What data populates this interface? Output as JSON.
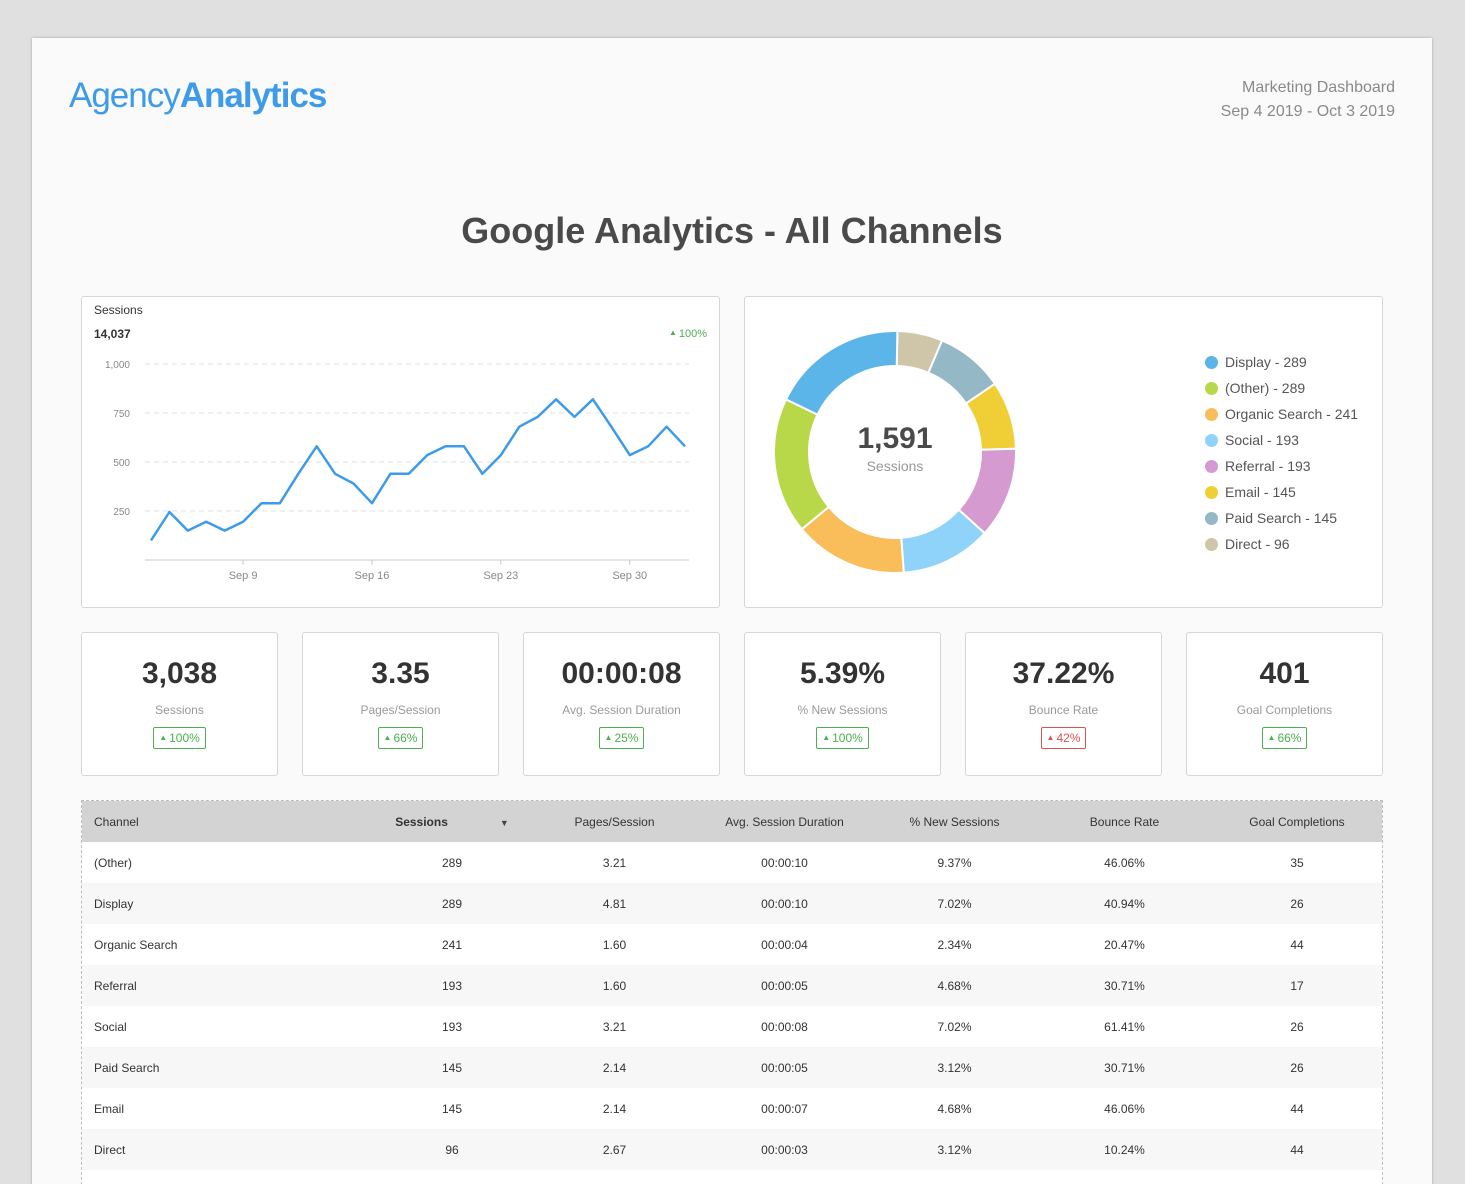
{
  "brand": {
    "part1": "Agency",
    "part2": "Analytics"
  },
  "report": {
    "name": "Marketing Dashboard",
    "date_range": "Sep 4 2019 - Oct 3 2019"
  },
  "title": "Google Analytics - All Channels",
  "sessions_chart": {
    "label": "Sessions",
    "total": "14,037",
    "delta": "100%",
    "chart_data": {
      "type": "line",
      "ylim": [
        0,
        1000
      ],
      "yticks": [
        250,
        500,
        750,
        1000
      ],
      "ytick_labels": [
        "250",
        "500",
        "750",
        "1,000"
      ],
      "xticks": [
        "Sep 9",
        "Sep 16",
        "Sep 23",
        "Sep 30"
      ],
      "x": [
        "Sep 4",
        "Sep 5",
        "Sep 6",
        "Sep 7",
        "Sep 8",
        "Sep 9",
        "Sep 10",
        "Sep 11",
        "Sep 12",
        "Sep 13",
        "Sep 14",
        "Sep 15",
        "Sep 16",
        "Sep 17",
        "Sep 18",
        "Sep 19",
        "Sep 20",
        "Sep 21",
        "Sep 22",
        "Sep 23",
        "Sep 24",
        "Sep 25",
        "Sep 26",
        "Sep 27",
        "Sep 28",
        "Sep 29",
        "Sep 30",
        "Oct 1",
        "Oct 2",
        "Oct 3"
      ],
      "series": [
        {
          "values": [
            100,
            245,
            150,
            195,
            150,
            195,
            290,
            290,
            440,
            580,
            440,
            390,
            290,
            440,
            440,
            535,
            580,
            580,
            440,
            535,
            680,
            730,
            820,
            730,
            820,
            680,
            535,
            580,
            680,
            580
          ],
          "color": "#3d9be9"
        }
      ],
      "grid": true
    }
  },
  "channels_donut": {
    "total": "1,591",
    "total_label": "Sessions",
    "chart_data": {
      "type": "pie",
      "categories": [
        "Display",
        "(Other)",
        "Organic Search",
        "Social",
        "Referral",
        "Email",
        "Paid Search",
        "Direct"
      ],
      "values": [
        289,
        289,
        241,
        193,
        193,
        145,
        145,
        96
      ],
      "colors": [
        "#5bb5e8",
        "#b8d84a",
        "#f9bd5a",
        "#8fd3fb",
        "#d59ad0",
        "#f0cf36",
        "#95b8c6",
        "#cfc5a8"
      ],
      "donut_order": [
        "Direct",
        "Paid Search",
        "Email",
        "Referral",
        "Social",
        "Organic Search",
        "(Other)",
        "Display"
      ]
    },
    "legend": [
      {
        "label": "Display - 289",
        "color": "#5bb5e8"
      },
      {
        "label": "(Other) - 289",
        "color": "#b8d84a"
      },
      {
        "label": "Organic Search - 241",
        "color": "#f9bd5a"
      },
      {
        "label": "Social - 193",
        "color": "#8fd3fb"
      },
      {
        "label": "Referral - 193",
        "color": "#d59ad0"
      },
      {
        "label": "Email - 145",
        "color": "#f0cf36"
      },
      {
        "label": "Paid Search - 145",
        "color": "#95b8c6"
      },
      {
        "label": "Direct - 96",
        "color": "#cfc5a8"
      }
    ]
  },
  "kpis": [
    {
      "value": "3,038",
      "label": "Sessions",
      "delta": "100%",
      "status": "good"
    },
    {
      "value": "3.35",
      "label": "Pages/Session",
      "delta": "66%",
      "status": "good"
    },
    {
      "value": "00:00:08",
      "label": "Avg. Session Duration",
      "delta": "25%",
      "status": "good"
    },
    {
      "value": "5.39%",
      "label": "% New Sessions",
      "delta": "100%",
      "status": "good"
    },
    {
      "value": "37.22%",
      "label": "Bounce Rate",
      "delta": "42%",
      "status": "bad"
    },
    {
      "value": "401",
      "label": "Goal Completions",
      "delta": "66%",
      "status": "good"
    }
  ],
  "table": {
    "columns": [
      "Channel",
      "Sessions",
      "Pages/Session",
      "Avg. Session Duration",
      "% New Sessions",
      "Bounce Rate",
      "Goal Completions"
    ],
    "sorted_column": "Sessions",
    "rows": [
      [
        "(Other)",
        "289",
        "3.21",
        "00:00:10",
        "9.37%",
        "46.06%",
        "35"
      ],
      [
        "Display",
        "289",
        "4.81",
        "00:00:10",
        "7.02%",
        "40.94%",
        "26"
      ],
      [
        "Organic Search",
        "241",
        "1.60",
        "00:00:04",
        "2.34%",
        "20.47%",
        "44"
      ],
      [
        "Referral",
        "193",
        "1.60",
        "00:00:05",
        "4.68%",
        "30.71%",
        "17"
      ],
      [
        "Social",
        "193",
        "3.21",
        "00:00:08",
        "7.02%",
        "61.41%",
        "26"
      ],
      [
        "Paid Search",
        "145",
        "2.14",
        "00:00:05",
        "3.12%",
        "30.71%",
        "26"
      ],
      [
        "Email",
        "145",
        "2.14",
        "00:00:07",
        "4.68%",
        "46.06%",
        "44"
      ],
      [
        "Direct",
        "96",
        "2.67",
        "00:00:03",
        "3.12%",
        "10.24%",
        "44"
      ]
    ]
  },
  "icons": {
    "up": "triangle-up-icon",
    "sort": "caret-down-icon"
  }
}
